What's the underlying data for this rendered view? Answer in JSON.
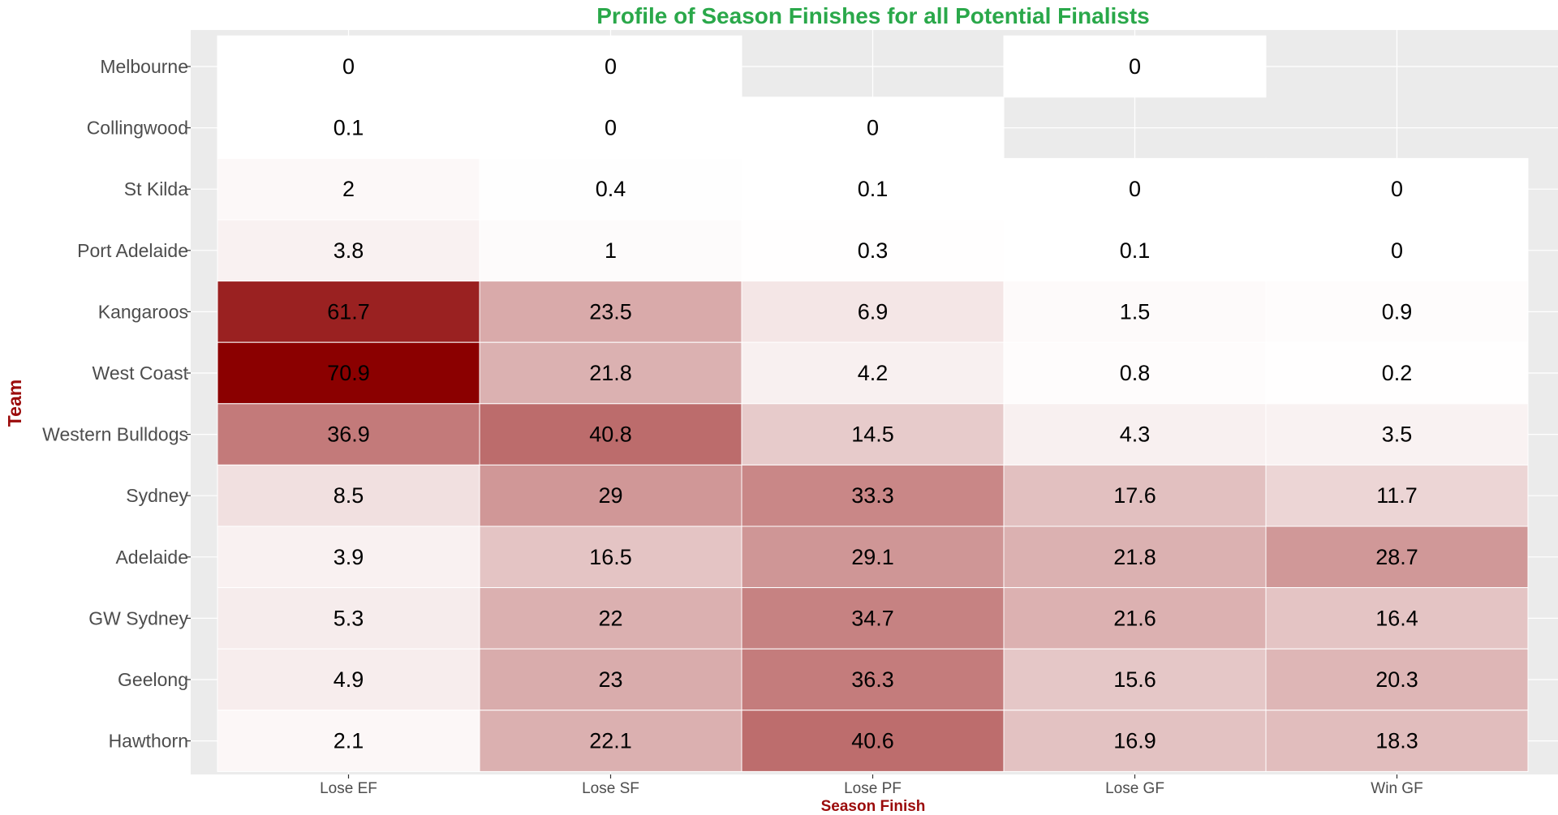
{
  "chart_data": {
    "type": "heatmap",
    "title": "Profile of Season Finishes for all Potential Finalists",
    "xlabel": "Season Finish",
    "ylabel": "Team",
    "x_categories": [
      "Lose EF",
      "Lose SF",
      "Lose PF",
      "Lose GF",
      "Win GF"
    ],
    "y_categories": [
      "Melbourne",
      "Collingwood",
      "St Kilda",
      "Port Adelaide",
      "Kangaroos",
      "West Coast",
      "Western Bulldogs",
      "Sydney",
      "Adelaide",
      "GW Sydney",
      "Geelong",
      "Hawthorn"
    ],
    "values": [
      [
        0,
        0,
        null,
        0,
        null
      ],
      [
        0.1,
        0,
        0,
        null,
        null
      ],
      [
        2,
        0.4,
        0.1,
        0,
        0
      ],
      [
        3.8,
        1,
        0.3,
        0.1,
        0
      ],
      [
        61.7,
        23.5,
        6.9,
        1.5,
        0.9
      ],
      [
        70.9,
        21.8,
        4.2,
        0.8,
        0.2
      ],
      [
        36.9,
        40.8,
        14.5,
        4.3,
        3.5
      ],
      [
        8.5,
        29,
        33.3,
        17.6,
        11.7
      ],
      [
        3.9,
        16.5,
        29.1,
        21.8,
        28.7
      ],
      [
        5.3,
        22,
        34.7,
        21.6,
        16.4
      ],
      [
        4.9,
        23,
        36.3,
        15.6,
        20.3
      ],
      [
        2.1,
        22.1,
        40.6,
        16.9,
        18.3
      ]
    ],
    "color_low": "#ffffff",
    "color_high": "#8b0000",
    "title_color": "#2aa84a",
    "axis_title_color": "#9b0b0b",
    "panel_background": "#ebebeb",
    "grid": true,
    "legend": "none"
  }
}
